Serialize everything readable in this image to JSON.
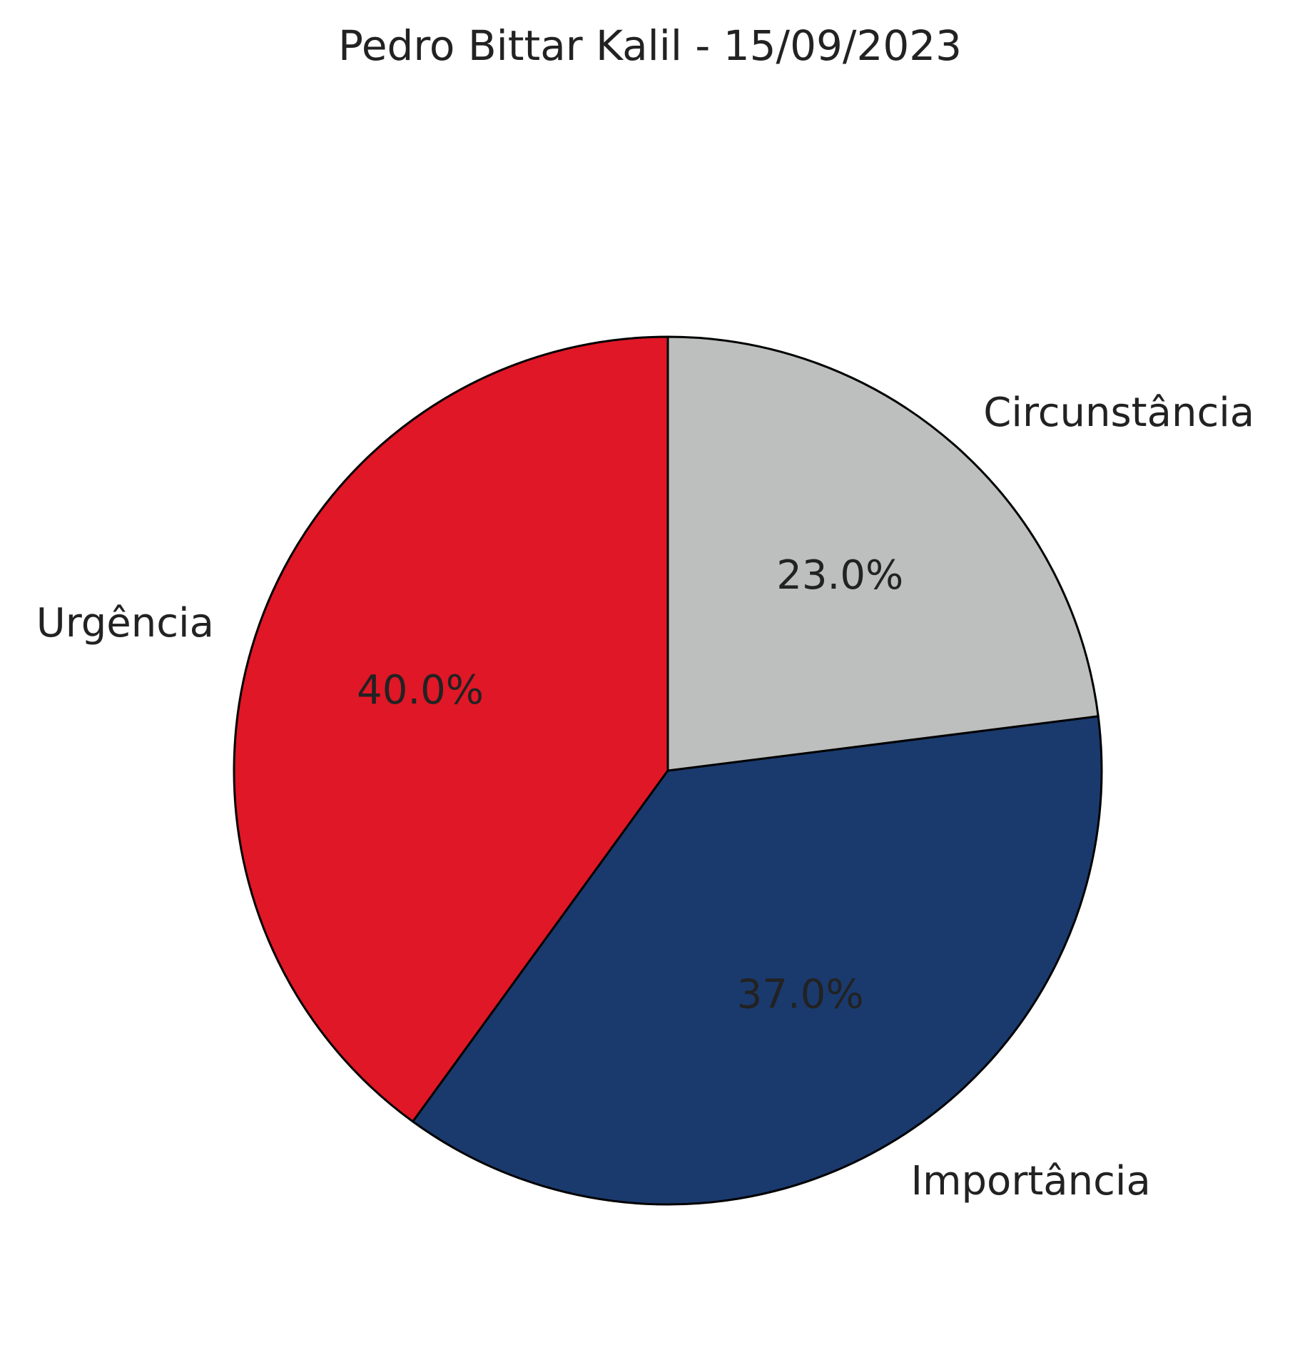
{
  "chart_data": {
    "type": "pie",
    "title": "Pedro Bittar Kalil - 15/09/2023",
    "start_angle_deg": 90,
    "direction": "counterclockwise",
    "slices": [
      {
        "label": "Urgência",
        "value": 40.0,
        "display": "40.0%",
        "color": "#e01726"
      },
      {
        "label": "Importância",
        "value": 37.0,
        "display": "37.0%",
        "color": "#1a3a6e"
      },
      {
        "label": "Circunstância",
        "value": 23.0,
        "display": "23.0%",
        "color": "#bdbfbe"
      }
    ],
    "slice_edge_color": "#000000",
    "text_color": "#222222"
  }
}
